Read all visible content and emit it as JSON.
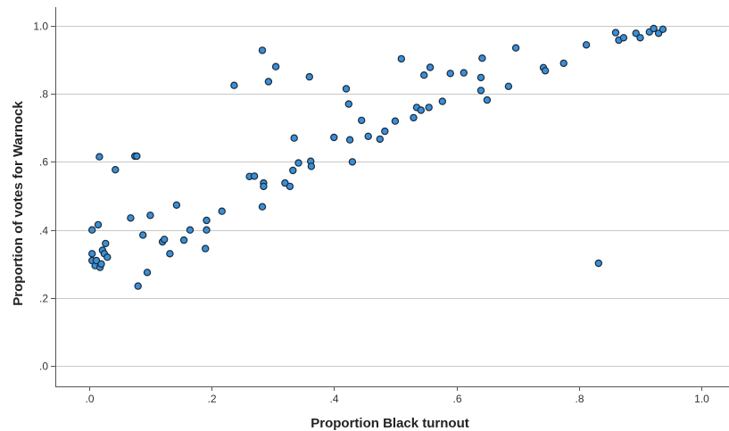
{
  "chart_data": {
    "type": "scatter",
    "title": "",
    "xlabel": "Proportion Black turnout",
    "ylabel": "Proportion of votes for Warnock",
    "xlim": [
      -0.055,
      1.045
    ],
    "ylim": [
      -0.06,
      1.055
    ],
    "x_ticks": [
      0.0,
      0.2,
      0.4,
      0.6,
      0.8,
      1.0
    ],
    "x_tick_labels": [
      ".0",
      ".2",
      ".4",
      ".6",
      ".8",
      "1.0"
    ],
    "y_ticks": [
      0.0,
      0.2,
      0.4,
      0.6,
      0.8,
      1.0
    ],
    "y_tick_labels": [
      ".0",
      ".2",
      ".4",
      ".6",
      ".8",
      "1.0"
    ],
    "grid": "horizontal",
    "marker_color": "#3a8fd6",
    "marker_edge_color": "#1b2a3a",
    "points": [
      {
        "x": 0.005,
        "y": 0.4
      },
      {
        "x": 0.005,
        "y": 0.33
      },
      {
        "x": 0.005,
        "y": 0.31
      },
      {
        "x": 0.01,
        "y": 0.295
      },
      {
        "x": 0.012,
        "y": 0.31
      },
      {
        "x": 0.015,
        "y": 0.415
      },
      {
        "x": 0.017,
        "y": 0.615
      },
      {
        "x": 0.018,
        "y": 0.29
      },
      {
        "x": 0.02,
        "y": 0.3
      },
      {
        "x": 0.022,
        "y": 0.34
      },
      {
        "x": 0.025,
        "y": 0.33
      },
      {
        "x": 0.027,
        "y": 0.36
      },
      {
        "x": 0.03,
        "y": 0.32
      },
      {
        "x": 0.043,
        "y": 0.577
      },
      {
        "x": 0.068,
        "y": 0.435
      },
      {
        "x": 0.075,
        "y": 0.617
      },
      {
        "x": 0.078,
        "y": 0.617
      },
      {
        "x": 0.08,
        "y": 0.235
      },
      {
        "x": 0.088,
        "y": 0.385
      },
      {
        "x": 0.095,
        "y": 0.275
      },
      {
        "x": 0.1,
        "y": 0.443
      },
      {
        "x": 0.12,
        "y": 0.365
      },
      {
        "x": 0.123,
        "y": 0.372
      },
      {
        "x": 0.132,
        "y": 0.33
      },
      {
        "x": 0.143,
        "y": 0.473
      },
      {
        "x": 0.155,
        "y": 0.37
      },
      {
        "x": 0.165,
        "y": 0.4
      },
      {
        "x": 0.19,
        "y": 0.345
      },
      {
        "x": 0.192,
        "y": 0.428
      },
      {
        "x": 0.192,
        "y": 0.4
      },
      {
        "x": 0.217,
        "y": 0.455
      },
      {
        "x": 0.237,
        "y": 0.825
      },
      {
        "x": 0.262,
        "y": 0.557
      },
      {
        "x": 0.27,
        "y": 0.558
      },
      {
        "x": 0.283,
        "y": 0.928
      },
      {
        "x": 0.283,
        "y": 0.468
      },
      {
        "x": 0.285,
        "y": 0.538
      },
      {
        "x": 0.285,
        "y": 0.528
      },
      {
        "x": 0.293,
        "y": 0.836
      },
      {
        "x": 0.305,
        "y": 0.88
      },
      {
        "x": 0.32,
        "y": 0.538
      },
      {
        "x": 0.328,
        "y": 0.528
      },
      {
        "x": 0.333,
        "y": 0.575
      },
      {
        "x": 0.335,
        "y": 0.67
      },
      {
        "x": 0.342,
        "y": 0.597
      },
      {
        "x": 0.36,
        "y": 0.85
      },
      {
        "x": 0.362,
        "y": 0.602
      },
      {
        "x": 0.363,
        "y": 0.587
      },
      {
        "x": 0.4,
        "y": 0.672
      },
      {
        "x": 0.42,
        "y": 0.815
      },
      {
        "x": 0.424,
        "y": 0.77
      },
      {
        "x": 0.426,
        "y": 0.665
      },
      {
        "x": 0.43,
        "y": 0.6
      },
      {
        "x": 0.445,
        "y": 0.722
      },
      {
        "x": 0.456,
        "y": 0.675
      },
      {
        "x": 0.475,
        "y": 0.667
      },
      {
        "x": 0.483,
        "y": 0.69
      },
      {
        "x": 0.5,
        "y": 0.72
      },
      {
        "x": 0.51,
        "y": 0.903
      },
      {
        "x": 0.53,
        "y": 0.73
      },
      {
        "x": 0.535,
        "y": 0.76
      },
      {
        "x": 0.542,
        "y": 0.752
      },
      {
        "x": 0.547,
        "y": 0.855
      },
      {
        "x": 0.555,
        "y": 0.76
      },
      {
        "x": 0.557,
        "y": 0.878
      },
      {
        "x": 0.577,
        "y": 0.778
      },
      {
        "x": 0.59,
        "y": 0.86
      },
      {
        "x": 0.612,
        "y": 0.862
      },
      {
        "x": 0.64,
        "y": 0.81
      },
      {
        "x": 0.64,
        "y": 0.848
      },
      {
        "x": 0.642,
        "y": 0.905
      },
      {
        "x": 0.65,
        "y": 0.782
      },
      {
        "x": 0.685,
        "y": 0.822
      },
      {
        "x": 0.697,
        "y": 0.935
      },
      {
        "x": 0.742,
        "y": 0.877
      },
      {
        "x": 0.745,
        "y": 0.868
      },
      {
        "x": 0.775,
        "y": 0.89
      },
      {
        "x": 0.812,
        "y": 0.944
      },
      {
        "x": 0.832,
        "y": 0.302
      },
      {
        "x": 0.86,
        "y": 0.98
      },
      {
        "x": 0.865,
        "y": 0.958
      },
      {
        "x": 0.873,
        "y": 0.965
      },
      {
        "x": 0.893,
        "y": 0.978
      },
      {
        "x": 0.9,
        "y": 0.965
      },
      {
        "x": 0.915,
        "y": 0.982
      },
      {
        "x": 0.922,
        "y": 0.992
      },
      {
        "x": 0.93,
        "y": 0.978
      },
      {
        "x": 0.937,
        "y": 0.99
      }
    ]
  }
}
